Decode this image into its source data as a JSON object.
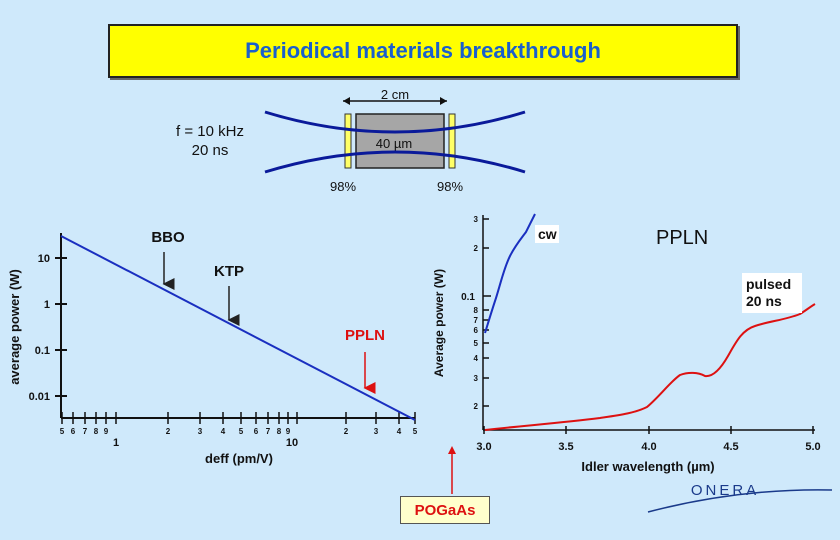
{
  "title": "Periodical materials breakthrough",
  "cavity": {
    "length_label": "2 cm",
    "waist_label": "40 µm",
    "mirror_left": "98%",
    "mirror_right": "98%",
    "pulse_params": [
      "f = 10 kHz",
      "20 ns"
    ]
  },
  "left_chart": {
    "ylabel": "average power (W)",
    "xlabel": "deff (pm/V)",
    "y_ticks": [
      "10",
      "1",
      "0.1",
      "0.01"
    ],
    "x_major_labels": [
      "1",
      "10"
    ],
    "x_minor_labels": [
      "5",
      "6",
      "7",
      "8",
      "9",
      "2",
      "3",
      "4",
      "5",
      "6",
      "7",
      "8",
      "9",
      "2",
      "3",
      "4",
      "5"
    ],
    "annotations": {
      "bbo": "BBO",
      "ktp": "KTP",
      "ppln": "PPLN"
    },
    "line_color": "#1a2fc0",
    "ppln_color": "#dd1111"
  },
  "right_chart": {
    "ylabel": "Average power (W)",
    "xlabel": "Idler wavelength (µm)",
    "title": "PPLN",
    "x_ticks": [
      "3.0",
      "3.5",
      "4.0",
      "4.5",
      "5.0"
    ],
    "y_label_01": "0.1",
    "y_decade_upper": [
      "3",
      "2"
    ],
    "y_decade_lower": [
      "8",
      "7",
      "6",
      "5",
      "4",
      "3",
      "2"
    ],
    "cw_label": "cw",
    "pulsed_label": [
      "pulsed",
      "20 ns"
    ],
    "cw_color": "#1a2fc0",
    "pulsed_color": "#dd1111"
  },
  "pogaas_label": "POGaAs",
  "logo_text": "ONERA"
}
